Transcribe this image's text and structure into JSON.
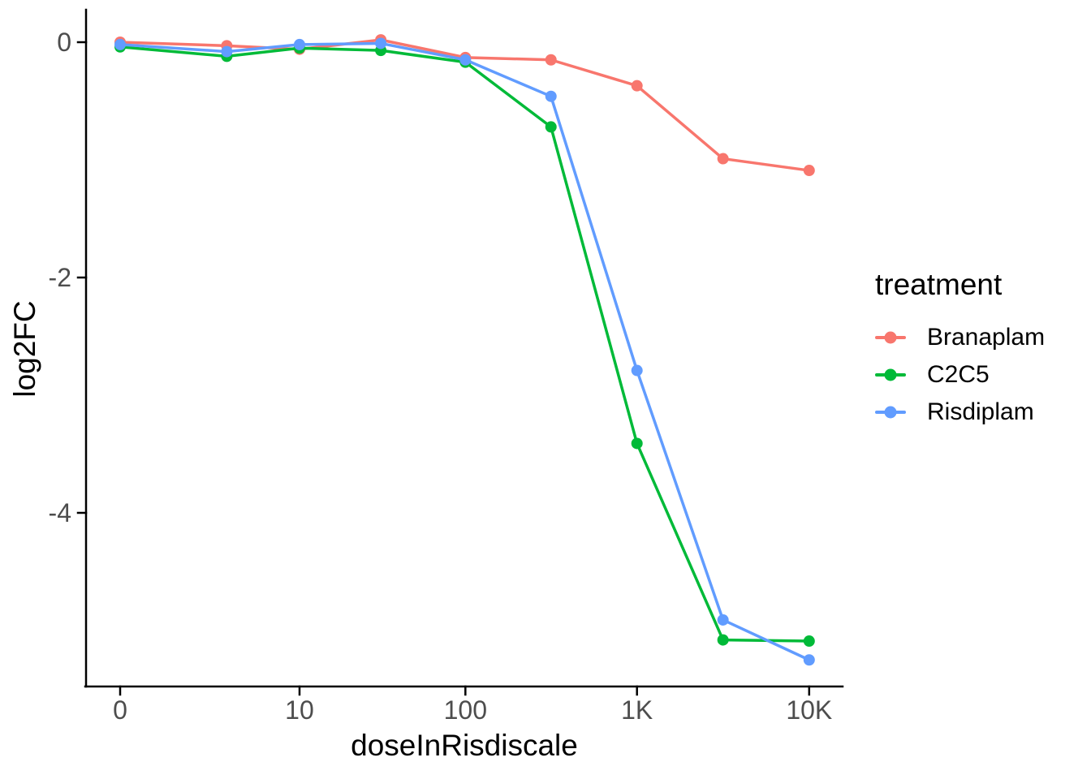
{
  "chart_data": {
    "type": "line",
    "title": "",
    "xlabel": "doseInRisdiscale",
    "ylabel": "log2FC",
    "x_scale": "log10(dose+1)",
    "grid": false,
    "legend": {
      "title": "treatment",
      "position": "right"
    },
    "x_ticks": [
      {
        "value": 0,
        "label": "0"
      },
      {
        "value": 10,
        "label": "10"
      },
      {
        "value": 100,
        "label": "100"
      },
      {
        "value": 1000,
        "label": "1K"
      },
      {
        "value": 10000,
        "label": "10K"
      }
    ],
    "y_ticks": [
      {
        "value": 0,
        "label": "0"
      },
      {
        "value": -2,
        "label": "-2"
      },
      {
        "value": -4,
        "label": "-4"
      }
    ],
    "xlim": [
      0,
      13000
    ],
    "ylim": [
      -5.5,
      0.3
    ],
    "x": [
      0,
      3.16,
      10,
      31.6,
      100,
      316,
      1000,
      3160,
      10000
    ],
    "series": [
      {
        "name": "Branaplam",
        "color": "#F8766D",
        "values": [
          0.0,
          -0.03,
          -0.06,
          0.02,
          -0.13,
          -0.15,
          -0.37,
          -0.99,
          -1.09
        ]
      },
      {
        "name": "C2C5",
        "color": "#00BA38",
        "values": [
          -0.04,
          -0.12,
          -0.05,
          -0.07,
          -0.17,
          -0.72,
          -3.41,
          -5.08,
          -5.09
        ]
      },
      {
        "name": "Risdiplam",
        "color": "#619CFF",
        "values": [
          -0.02,
          -0.08,
          -0.02,
          -0.01,
          -0.15,
          -0.46,
          -2.79,
          -4.91,
          -5.25
        ]
      }
    ]
  },
  "colors": {
    "background": "#FFFFFF",
    "axis_line": "#000000",
    "tick_text": "#4D4D4D",
    "title_text": "#000000"
  }
}
